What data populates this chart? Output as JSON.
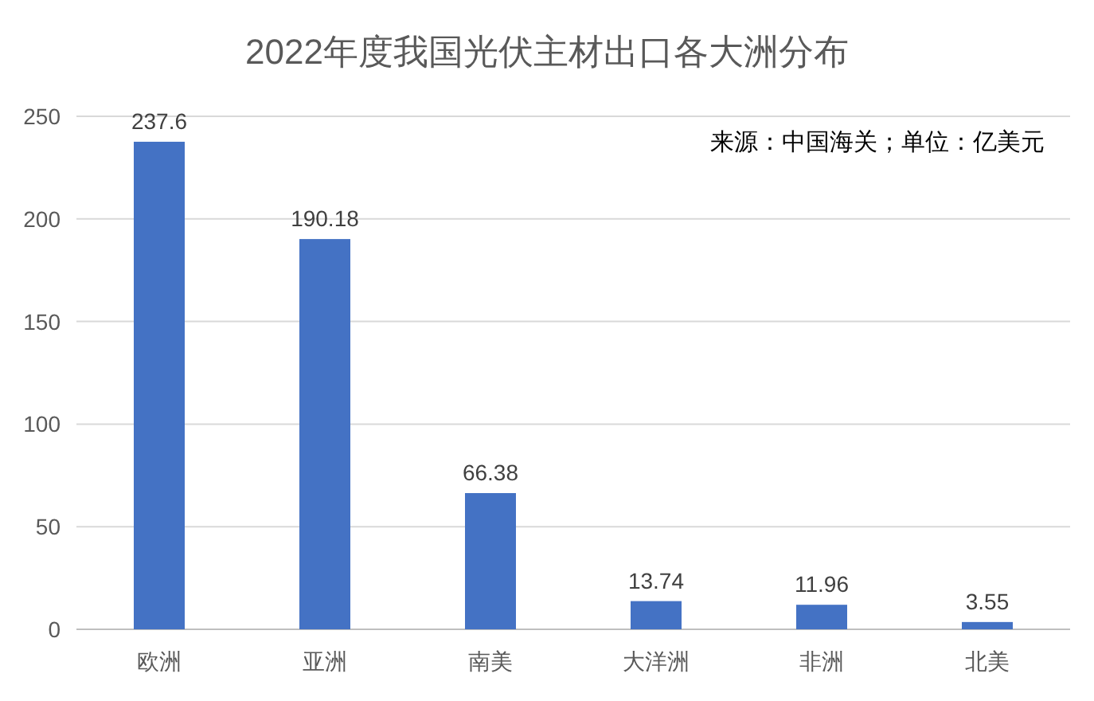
{
  "chart_data": {
    "type": "bar",
    "title": "2022年度我国光伏主材出口各大洲分布",
    "categories": [
      "欧洲",
      "亚洲",
      "南美",
      "大洋洲",
      "非洲",
      "北美"
    ],
    "values": [
      237.6,
      190.18,
      66.38,
      13.74,
      11.96,
      3.55
    ],
    "color": "#4472c4",
    "ylim": [
      0,
      250
    ],
    "yticks": [
      0,
      50,
      100,
      150,
      200,
      250
    ],
    "grid": "y",
    "data_labels": true,
    "annotations": [
      "来源：中国海关；单位：亿美元"
    ]
  }
}
